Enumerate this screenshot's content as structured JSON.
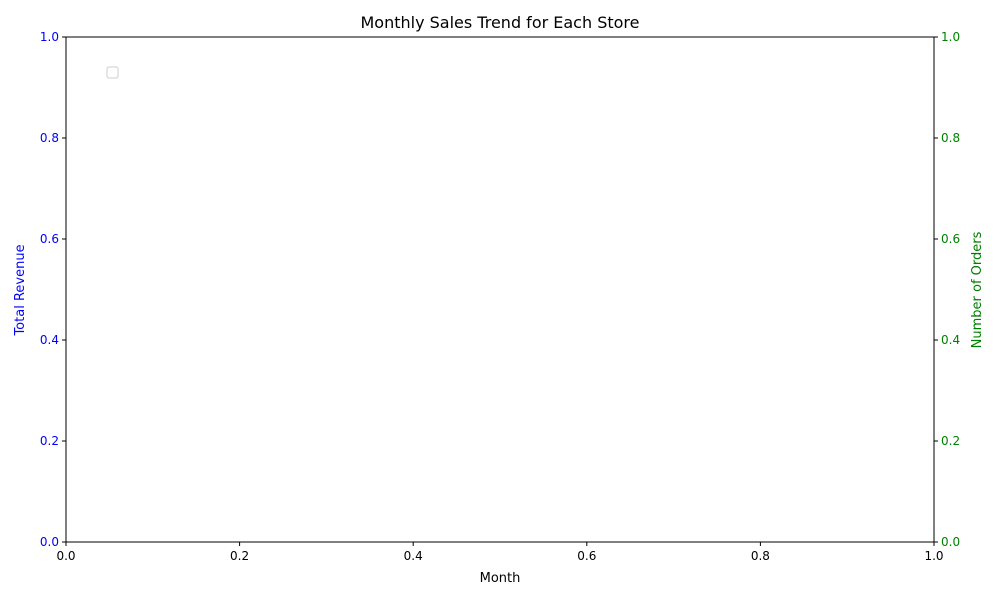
{
  "chart_data": {
    "type": "line",
    "title": "Monthly Sales Trend for Each Store",
    "xlabel": "Month",
    "ylabel_left": "Total Revenue",
    "ylabel_right": "Number of Orders",
    "xlim": [
      0,
      1
    ],
    "ylim_left": [
      0,
      1
    ],
    "ylim_right": [
      0,
      1
    ],
    "x_ticks": [
      "0.0",
      "0.2",
      "0.4",
      "0.6",
      "0.8",
      "1.0"
    ],
    "y_left_ticks": [
      "0.0",
      "0.2",
      "0.4",
      "0.6",
      "0.8",
      "1.0"
    ],
    "y_right_ticks": [
      "0.0",
      "0.2",
      "0.4",
      "0.6",
      "0.8",
      "1.0"
    ],
    "series": [],
    "legend": "top-left",
    "grid": false,
    "colors": {
      "left_axis": "#0000ff",
      "right_axis": "#008000",
      "text": "#000000"
    }
  }
}
